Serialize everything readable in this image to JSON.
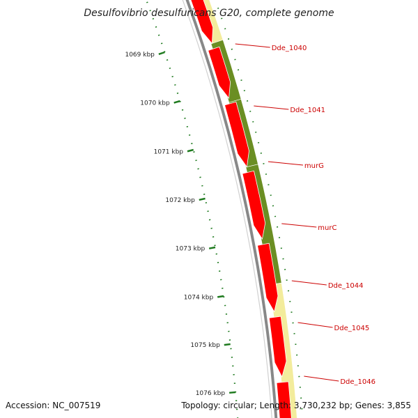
{
  "title": "Desulfovibrio desulfuricans G20, complete genome",
  "accession": "Accession: NC_007519",
  "topology": "Topology: circular; Length: 3,730,232 bp; Genes: 3,855",
  "colors": {
    "backbone": "#888888",
    "forward_cds": "#ff0000",
    "feature_dark": "#6b8e23",
    "feature_light": "#f3ec9c",
    "ticks": "#1e7a1e",
    "labels": "#cc0000"
  },
  "ticks": [
    {
      "label": "1069 kbp"
    },
    {
      "label": "1070 kbp"
    },
    {
      "label": "1071 kbp"
    },
    {
      "label": "1072 kbp"
    },
    {
      "label": "1073 kbp"
    },
    {
      "label": "1074 kbp"
    },
    {
      "label": "1075 kbp"
    },
    {
      "label": "1076 kbp"
    }
  ],
  "genes": [
    {
      "label": "Dde_1040"
    },
    {
      "label": "Dde_1041"
    },
    {
      "label": "murG"
    },
    {
      "label": "murC"
    },
    {
      "label": "Dde_1044"
    },
    {
      "label": "Dde_1045"
    },
    {
      "label": "Dde_1046"
    }
  ]
}
